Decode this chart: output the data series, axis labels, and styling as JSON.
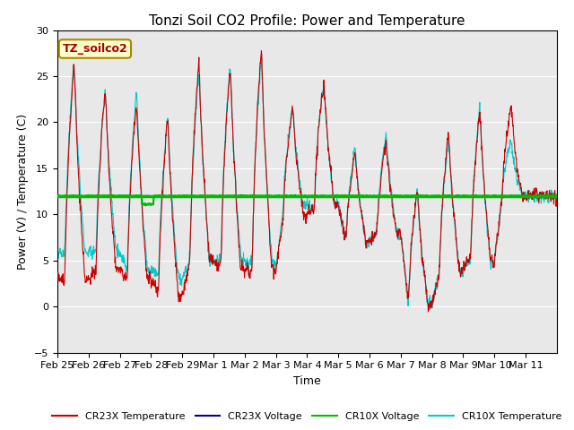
{
  "title": "Tonzi Soil CO2 Profile: Power and Temperature",
  "ylabel": "Power (V) / Temperature (C)",
  "xlabel": "Time",
  "ylim": [
    -5,
    30
  ],
  "yticks": [
    -5,
    0,
    5,
    10,
    15,
    20,
    25,
    30
  ],
  "xlim": [
    0,
    384
  ],
  "xtick_labels": [
    "Feb 25",
    "Feb 26",
    "Feb 27",
    "Feb 28",
    "Feb 29",
    "Mar 1",
    "Mar 2",
    "Mar 3",
    "Mar 4",
    "Mar 5",
    "Mar 6",
    "Mar 7",
    "Mar 8",
    "Mar 9",
    "Mar 10",
    "Mar 11"
  ],
  "xtick_positions": [
    0,
    24,
    48,
    72,
    96,
    120,
    144,
    168,
    192,
    216,
    240,
    264,
    288,
    312,
    336,
    360
  ],
  "cr23x_temp_color": "#cc0000",
  "cr23x_volt_color": "#000099",
  "cr10x_volt_color": "#00bb00",
  "cr10x_temp_color": "#00cccc",
  "horizontal_line_value": 12.0,
  "annotation_text": "TZ_soilco2",
  "annotation_color": "#aa0000",
  "annotation_bg": "#ffffcc",
  "annotation_edge": "#aa8800",
  "background_color": "#e8e8e8",
  "title_fontsize": 11,
  "label_fontsize": 9,
  "tick_fontsize": 8
}
